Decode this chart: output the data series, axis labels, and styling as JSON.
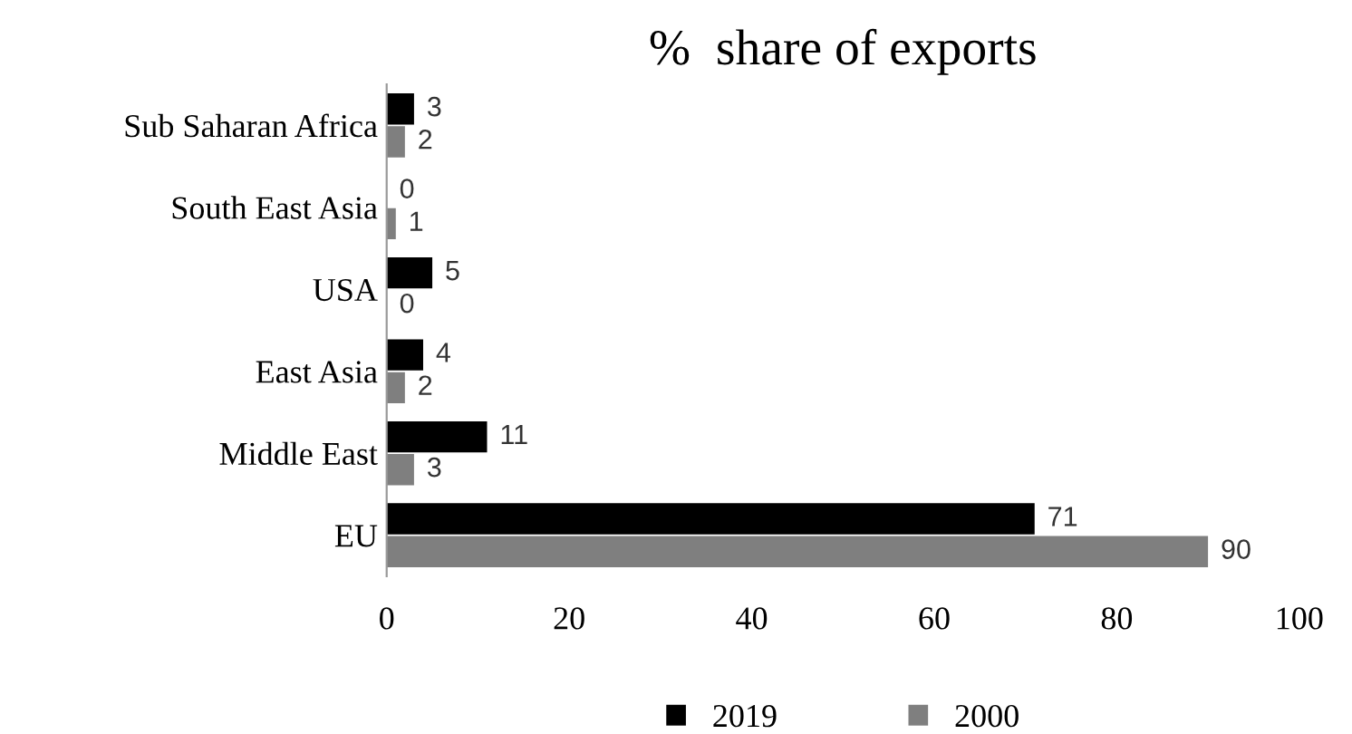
{
  "chart_data": {
    "type": "bar",
    "orientation": "horizontal",
    "title": "%  share of exports",
    "categories": [
      "Sub Saharan Africa",
      "South East Asia",
      "USA",
      "East Asia",
      "Middle East",
      "EU"
    ],
    "series": [
      {
        "name": "2019",
        "color": "#000000",
        "values": [
          3,
          0,
          5,
          4,
          11,
          71
        ]
      },
      {
        "name": "2000",
        "color": "#7f7f7f",
        "values": [
          2,
          1,
          0,
          2,
          3,
          90
        ]
      }
    ],
    "xlim": [
      0,
      100
    ],
    "xticks": [
      0,
      20,
      40,
      60,
      80,
      100
    ],
    "data_labels": true,
    "grid": false,
    "legend": "bottom"
  }
}
